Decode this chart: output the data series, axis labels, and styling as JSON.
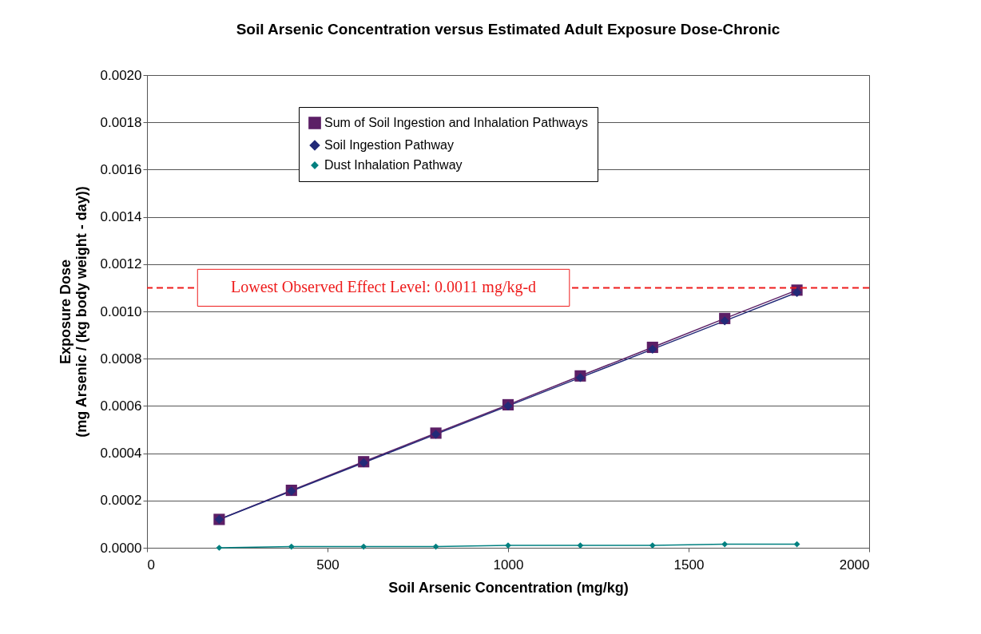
{
  "chart_data": {
    "type": "line",
    "title": "Soil Arsenic Concentration versus Estimated Adult Exposure Dose-Chronic",
    "xlabel": "Soil Arsenic Concentration (mg/kg)",
    "ylabel": "Exposure Dose\n(mg Arsenic / (kg body weight - day))",
    "x": [
      200,
      400,
      600,
      800,
      1000,
      1200,
      1400,
      1600,
      1800
    ],
    "series": [
      {
        "name": "Sum of Soil Ingestion and Inhalation Pathways",
        "color": "#5c1f66",
        "marker": "square",
        "values": [
          0.00012,
          0.000243,
          0.000364,
          0.000485,
          0.000605,
          0.000727,
          0.000848,
          0.00097,
          0.00109
        ]
      },
      {
        "name": "Soil Ingestion Pathway",
        "color": "#232a78",
        "marker": "diamond",
        "values": [
          0.00012,
          0.00024,
          0.00036,
          0.00048,
          0.0006,
          0.00072,
          0.00084,
          0.00096,
          0.00108
        ]
      },
      {
        "name": "Dust Inhalation Pathway",
        "color": "#008080",
        "marker": "diamond",
        "values": [
          0,
          5e-06,
          5e-06,
          5e-06,
          1e-05,
          1e-05,
          1e-05,
          1.5e-05,
          1.5e-05
        ]
      }
    ],
    "xlim": [
      0,
      2000
    ],
    "xticks": [
      0,
      500,
      1000,
      1500,
      2000
    ],
    "ylim": [
      0,
      0.002
    ],
    "yticks": [
      {
        "value": 0,
        "label": "0.0000"
      },
      {
        "value": 0.0002,
        "label": "0.0002"
      },
      {
        "value": 0.0004,
        "label": "0.0004"
      },
      {
        "value": 0.0006,
        "label": "0.0006"
      },
      {
        "value": 0.0008,
        "label": "0.0008"
      },
      {
        "value": 0.001,
        "label": "0.0010"
      },
      {
        "value": 0.0012,
        "label": "0.0012"
      },
      {
        "value": 0.0014,
        "label": "0.0014"
      },
      {
        "value": 0.0016,
        "label": "0.0016"
      },
      {
        "value": 0.0018,
        "label": "0.0018"
      },
      {
        "value": 0.002,
        "label": "0.0020"
      }
    ],
    "ref_lines": [
      {
        "axis": "y",
        "value": 0.0011,
        "label": "Lowest Observed Effect Level: 0.0011 mg/kg-d",
        "color": "#ee1c1c",
        "line_style": "dashed"
      }
    ],
    "grid": "y",
    "legend": "top",
    "line_style": "solid"
  }
}
